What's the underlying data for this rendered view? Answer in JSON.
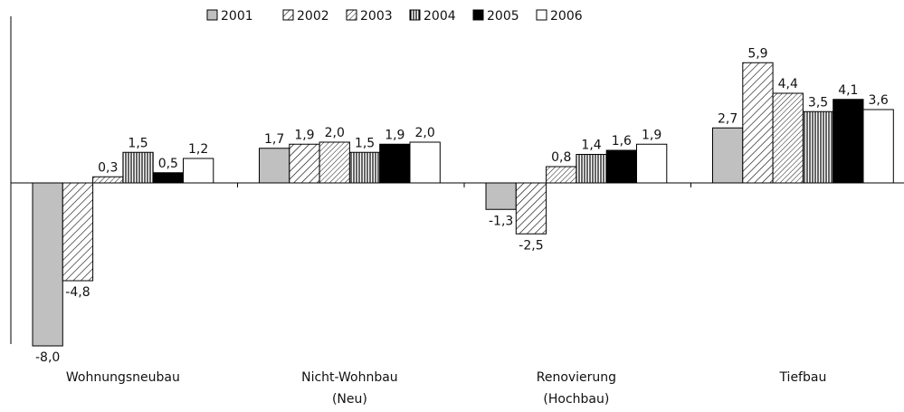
{
  "chart_data": {
    "type": "bar",
    "title": "",
    "xlabel": "",
    "ylabel": "",
    "ylim": [
      -8.0,
      5.9
    ],
    "grid": false,
    "legend_position": "top",
    "categories": [
      [
        "Wohnungsneubau"
      ],
      [
        "Nicht-Wohnbau",
        "(Neu)"
      ],
      [
        "Renovierung",
        "(Hochbau)"
      ],
      [
        "Tiefbau"
      ]
    ],
    "series": [
      {
        "name": "2001",
        "fill": "solid",
        "color": "#c0c0c0",
        "values": [
          -8.0,
          1.7,
          -1.3,
          2.7
        ],
        "labels": [
          "-8,0",
          "1,7",
          "-1,3",
          "2,7"
        ]
      },
      {
        "name": "2002",
        "fill": "diagonal-hatch-wide",
        "color": "#ffffff",
        "values": [
          -4.8,
          1.9,
          -2.5,
          5.9
        ],
        "labels": [
          "-4,8",
          "1,9",
          "-2,5",
          "5,9"
        ]
      },
      {
        "name": "2003",
        "fill": "diagonal-hatch-fine",
        "color": "#ffffff",
        "values": [
          0.3,
          2.0,
          0.8,
          4.4
        ],
        "labels": [
          "0,3",
          "2,0",
          "0,8",
          "4,4"
        ]
      },
      {
        "name": "2004",
        "fill": "vertical-stripes",
        "color": "#ffffff",
        "values": [
          1.5,
          1.5,
          1.4,
          3.5
        ],
        "labels": [
          "1,5",
          "1,5",
          "1,4",
          "3,5"
        ]
      },
      {
        "name": "2005",
        "fill": "solid",
        "color": "#000000",
        "values": [
          0.5,
          1.9,
          1.6,
          4.1
        ],
        "labels": [
          "0,5",
          "1,9",
          "1,6",
          "4,1"
        ]
      },
      {
        "name": "2006",
        "fill": "solid",
        "color": "#ffffff",
        "values": [
          1.2,
          2.0,
          1.9,
          3.6
        ],
        "labels": [
          "1,2",
          "2,0",
          "1,9",
          "3,6"
        ]
      }
    ]
  }
}
